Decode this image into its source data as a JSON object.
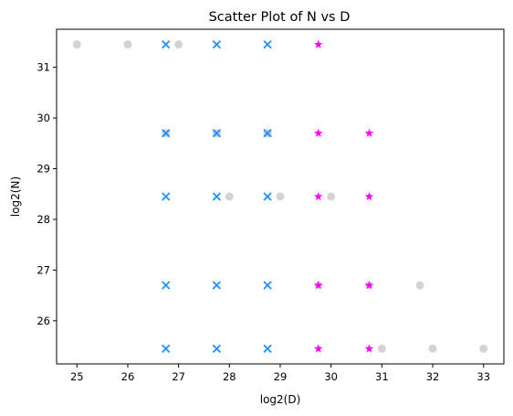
{
  "chart_data": {
    "type": "scatter",
    "title": "Scatter Plot of N vs D",
    "xlabel": "log2(D)",
    "ylabel": "log2(N)",
    "xlim": [
      24.6,
      33.4
    ],
    "ylim": [
      25.15,
      31.75
    ],
    "xticks": [
      25,
      26,
      27,
      28,
      29,
      30,
      31,
      32,
      33
    ],
    "yticks": [
      26,
      27,
      28,
      29,
      30,
      31
    ],
    "grid": false,
    "legend": "none",
    "series": [
      {
        "marker": "circle",
        "color": "#d3d3d3",
        "points": [
          [
            25,
            31.45
          ],
          [
            26,
            31.45
          ],
          [
            27,
            31.45
          ],
          [
            26.75,
            29.7
          ],
          [
            27.75,
            29.7
          ],
          [
            28.75,
            29.7
          ],
          [
            28,
            28.45
          ],
          [
            29,
            28.45
          ],
          [
            30,
            28.45
          ],
          [
            29.75,
            26.7
          ],
          [
            30.75,
            26.7
          ],
          [
            31.75,
            26.7
          ],
          [
            31,
            25.45
          ],
          [
            32,
            25.45
          ],
          [
            33,
            25.45
          ]
        ]
      },
      {
        "marker": "x",
        "color": "#1e90ff",
        "points": [
          [
            26.75,
            31.45
          ],
          [
            27.75,
            31.45
          ],
          [
            28.75,
            31.45
          ],
          [
            26.75,
            29.7
          ],
          [
            27.75,
            29.7
          ],
          [
            28.75,
            29.7
          ],
          [
            26.75,
            28.45
          ],
          [
            27.75,
            28.45
          ],
          [
            28.75,
            28.45
          ],
          [
            26.75,
            26.7
          ],
          [
            27.75,
            26.7
          ],
          [
            28.75,
            26.7
          ],
          [
            26.75,
            25.45
          ],
          [
            27.75,
            25.45
          ],
          [
            28.75,
            25.45
          ]
        ]
      },
      {
        "marker": "star",
        "color": "#ff00ff",
        "points": [
          [
            29.75,
            31.45
          ],
          [
            29.75,
            29.7
          ],
          [
            30.75,
            29.7
          ],
          [
            29.75,
            28.45
          ],
          [
            30.75,
            28.45
          ],
          [
            29.75,
            26.7
          ],
          [
            30.75,
            26.7
          ],
          [
            29.75,
            25.45
          ],
          [
            30.75,
            25.45
          ]
        ]
      }
    ]
  }
}
